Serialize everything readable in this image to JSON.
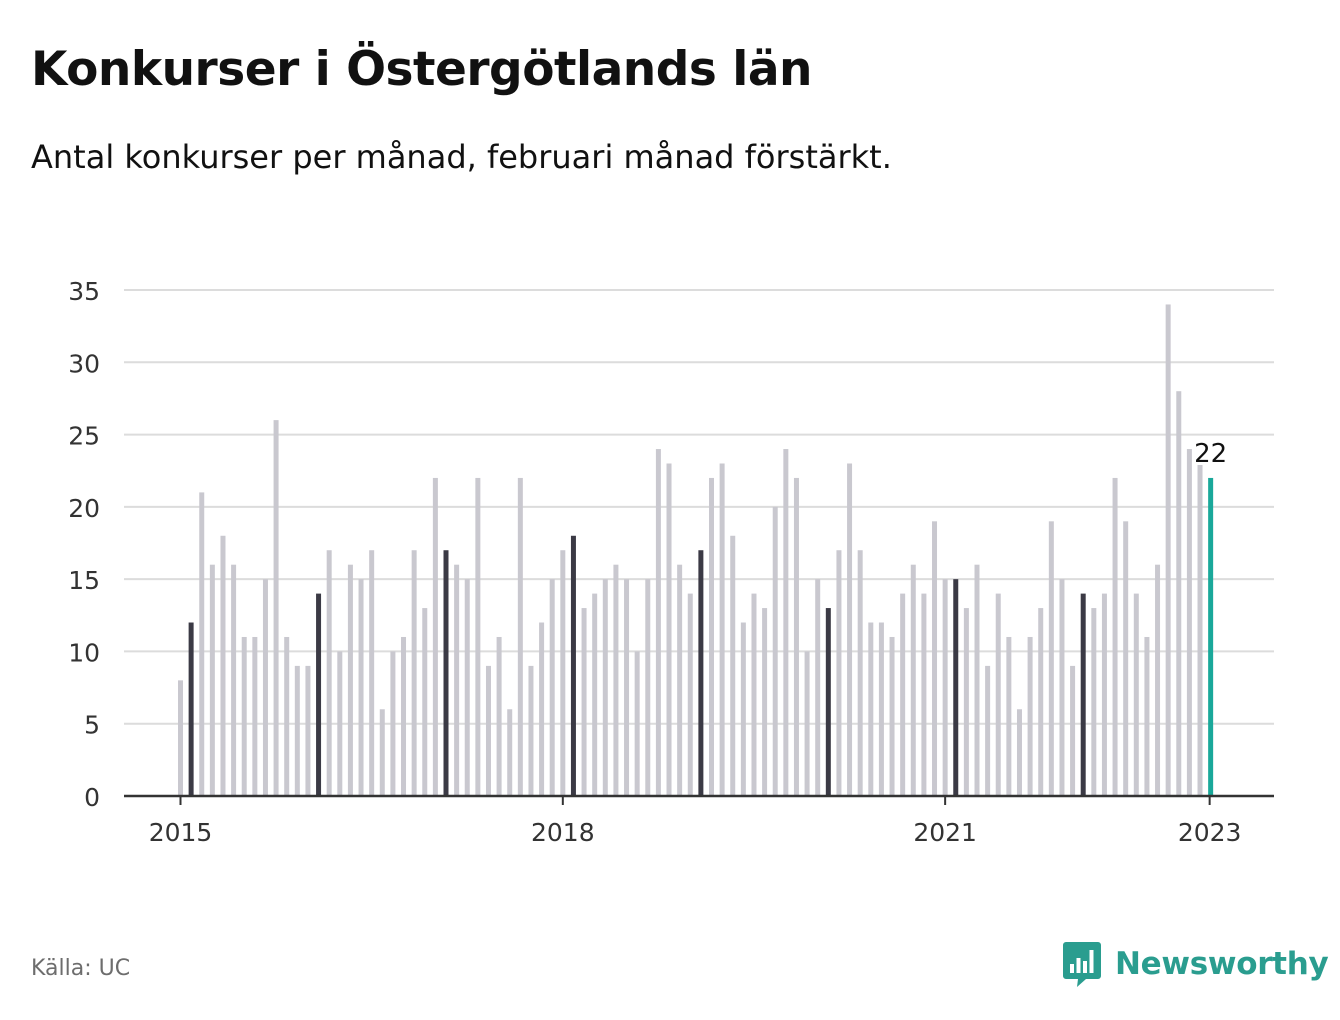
{
  "title": "Konkurser i Östergötlands län",
  "subtitle": "Antal konkurser per månad, februari månad förstärkt.",
  "source": "Källa: UC",
  "brand": "Newsworthy",
  "colors": {
    "bar": "#c9c8cf",
    "highlight": "#3b3a45",
    "latest": "#1aa89a",
    "grid": "#dcdcdc",
    "axis": "#333333"
  },
  "chart_data": {
    "type": "bar",
    "ylim": [
      0,
      35
    ],
    "y_ticks": [
      0,
      5,
      10,
      15,
      20,
      25,
      30,
      35
    ],
    "x_tick_labels": [
      "2015",
      "2018",
      "2021",
      "2023"
    ],
    "highlight_month": "February",
    "value_label": "22",
    "series": [
      {
        "values": [
          8,
          12,
          21,
          16,
          18,
          16,
          11,
          11,
          15,
          26,
          11,
          9,
          9,
          14,
          17,
          10,
          16,
          15,
          17,
          6,
          10,
          11,
          17,
          13,
          22,
          17,
          16,
          15,
          22,
          9,
          11,
          6,
          22,
          9,
          12,
          15,
          17,
          18,
          13,
          14,
          15,
          16,
          15,
          10,
          15,
          24,
          23,
          16,
          14,
          17,
          22,
          23,
          18,
          12,
          14,
          13,
          20,
          24,
          22,
          10,
          15,
          13,
          17,
          23,
          17,
          12,
          12,
          11,
          14,
          16,
          14,
          19,
          15,
          15,
          13,
          16,
          9,
          14,
          11,
          6,
          11,
          13,
          19,
          15,
          9,
          14,
          13,
          14,
          22,
          19,
          14,
          11,
          16,
          34,
          28,
          24,
          23,
          22
        ]
      }
    ]
  }
}
